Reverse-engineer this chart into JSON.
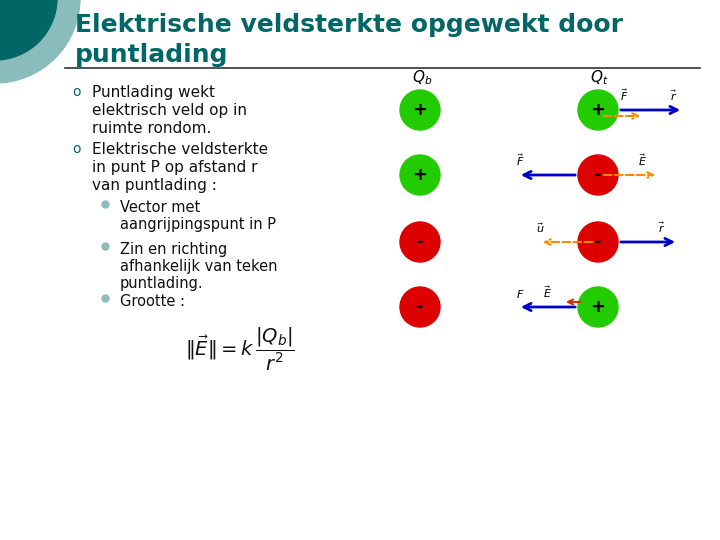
{
  "title_line1": "Elektrische veldsterkte opgewekt door",
  "title_line2": "puntlading",
  "title_color": "#006666",
  "title_fontsize": 18,
  "bg_color": "#ffffff",
  "decor_dark_color": "#006666",
  "decor_light_color": "#8bbcbc",
  "separator_color": "#333333",
  "bullet_color": "#006666",
  "text_color": "#111111",
  "text_fontsize": 11,
  "bullet1_line1": "Puntlading wekt",
  "bullet1_line2": "elektrisch veld op in",
  "bullet1_line3": "ruimte rondom.",
  "bullet2_line1": "Elektrische veldsterkte",
  "bullet2_line2": "in punt P op afstand r",
  "bullet2_line3": "van puntlading :",
  "sub_bullet1_line1": "Vector met",
  "sub_bullet1_line2": "aangrijpingspunt in P",
  "sub_bullet2_line1": "Zin en richting",
  "sub_bullet2_line2": "afhankelijk van teken",
  "sub_bullet2_line3": "puntlading.",
  "sub_bullet3": "Grootte :",
  "green_color": "#22cc00",
  "red_color": "#dd0000",
  "orange_color": "#ff8800",
  "blue_color": "#0000cc",
  "dark_red_color": "#cc3300",
  "sub_dot_color": "#90bbbb"
}
